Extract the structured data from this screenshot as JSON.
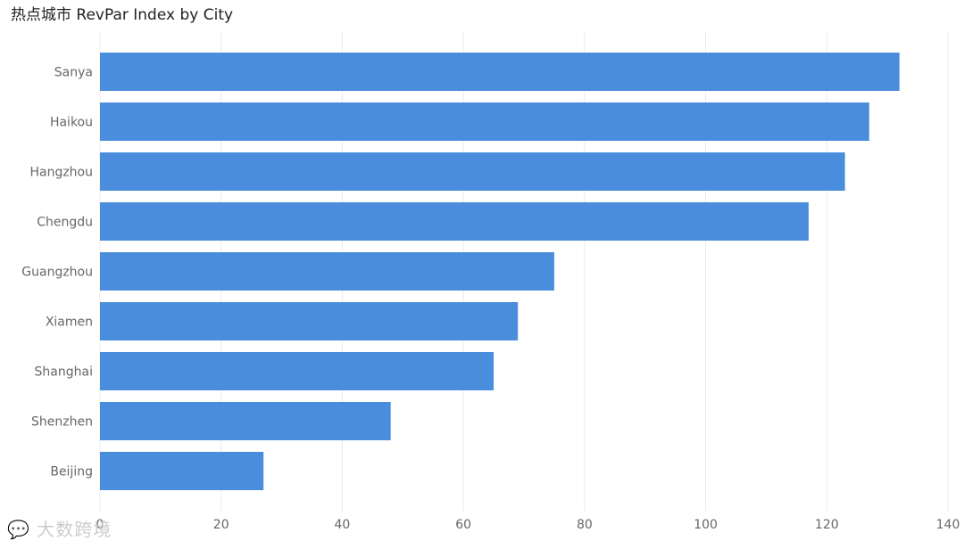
{
  "chart_data": {
    "type": "bar",
    "orientation": "horizontal",
    "title": "热点城市 RevPar Index by City",
    "categories": [
      "Sanya",
      "Haikou",
      "Hangzhou",
      "Chengdu",
      "Guangzhou",
      "Xiamen",
      "Shanghai",
      "Shenzhen",
      "Beijing"
    ],
    "values": [
      132,
      127,
      123,
      117,
      75,
      69,
      65,
      48,
      27
    ],
    "xlabel": "",
    "ylabel": "",
    "xlim": [
      0,
      140
    ],
    "xticks": [
      0,
      20,
      40,
      60,
      80,
      100,
      120,
      140
    ],
    "grid": true,
    "legend": "none",
    "bar_color": "#4A8DDC",
    "grid_color": "#EBEBEB"
  },
  "watermark": {
    "icon": "logo-icon",
    "text": "大数跨境"
  }
}
